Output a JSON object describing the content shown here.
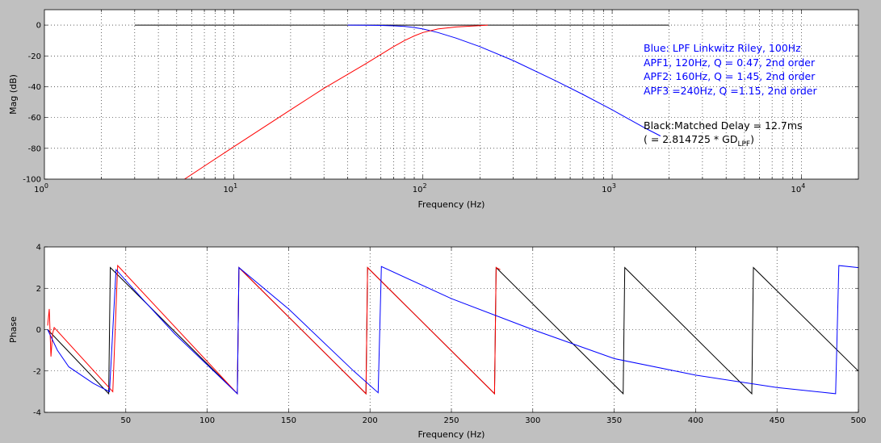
{
  "colors": {
    "background": "#c0c0c0",
    "axes": "#ffffff",
    "grid": "#000000",
    "blue": "#0000ff",
    "red": "#ff0000",
    "black": "#000000"
  },
  "chart_data": [
    {
      "type": "line",
      "xscale": "log",
      "xlim": [
        1,
        20000
      ],
      "ylim": [
        -100,
        10
      ],
      "xlabel": "Frequency (Hz)",
      "ylabel": "Mag (dB)",
      "grid": true,
      "xticks": [
        1,
        10,
        100,
        1000,
        10000
      ],
      "xtick_labels": [
        {
          "base": "10",
          "exp": "0"
        },
        {
          "base": "10",
          "exp": "1"
        },
        {
          "base": "10",
          "exp": "2"
        },
        {
          "base": "10",
          "exp": "3"
        },
        {
          "base": "10",
          "exp": "4"
        }
      ],
      "yticks": [
        0,
        -20,
        -40,
        -60,
        -80,
        -100
      ],
      "ytick_labels": [
        "0",
        "-20",
        "-40",
        "-60",
        "-80",
        "-100"
      ],
      "series": [
        {
          "color": "#000000",
          "x": [
            3,
            2000
          ],
          "y": [
            0,
            0
          ]
        },
        {
          "color": "#0000ff",
          "x": [
            40,
            50,
            60,
            70,
            80,
            90,
            100,
            120,
            150,
            200,
            300,
            500,
            700,
            1000,
            1500,
            1800
          ],
          "y": [
            0,
            -0.1,
            -0.2,
            -0.5,
            -0.9,
            -1.6,
            -2.5,
            -4.8,
            -8.5,
            -14,
            -23,
            -36,
            -45,
            -55,
            -67,
            -72
          ]
        },
        {
          "color": "#ff0000",
          "x": [
            5.5,
            10,
            20,
            30,
            40,
            50,
            60,
            70,
            80,
            90,
            100,
            120,
            150,
            200,
            220
          ],
          "y": [
            -100,
            -79,
            -55,
            -41,
            -32,
            -25,
            -19,
            -14,
            -10,
            -7,
            -4.8,
            -2.5,
            -1.2,
            -0.3,
            0
          ]
        }
      ],
      "annotations": [
        {
          "text": "Blue: LPF Linkwitz Riley, 100Hz",
          "color": "#0000ff"
        },
        {
          "text": "APF1, 120Hz, Q = 0.47, 2nd order",
          "color": "#0000ff"
        },
        {
          "text": "APF2: 160Hz, Q = 1.45, 2nd order",
          "color": "#0000ff"
        },
        {
          "text": "APF3 =240Hz, Q =1.15, 2nd order",
          "color": "#0000ff"
        },
        {
          "text": "Black:Matched Delay = 12.7ms",
          "color": "#000000"
        },
        {
          "text_prefix": "( = 2.814725 * GD",
          "subscript": "LPF",
          "text_suffix": ")",
          "color": "#000000"
        }
      ]
    },
    {
      "type": "line",
      "xlim": [
        0,
        500
      ],
      "ylim": [
        -4,
        4
      ],
      "xlabel": "Frequency (Hz)",
      "ylabel": "Phase",
      "grid": true,
      "xticks": [
        50,
        100,
        150,
        200,
        250,
        300,
        350,
        400,
        450,
        500
      ],
      "xtick_labels": [
        "50",
        "100",
        "150",
        "200",
        "250",
        "300",
        "350",
        "400",
        "450",
        "500"
      ],
      "yticks": [
        4,
        2,
        0,
        -2,
        -4
      ],
      "ytick_labels": [
        "4",
        "2",
        "0",
        "-2",
        "-4"
      ],
      "series": [
        {
          "color": "#000000",
          "x": [
            2,
            39.5,
            40.5,
            118.5,
            119.5,
            197.5,
            198.5,
            276.5,
            277.5,
            355.5,
            356.5,
            434.5,
            435.5,
            500
          ],
          "y": [
            0,
            -3.1,
            3.0,
            -3.1,
            3.0,
            -3.1,
            3.0,
            -3.1,
            3.0,
            -3.1,
            3.0,
            -3.1,
            3.0,
            -2.0
          ]
        },
        {
          "color": "#ff0000",
          "x": [
            2,
            3,
            4,
            5,
            6,
            42,
            45,
            118.5,
            119.5,
            197.5,
            198.5,
            276.5,
            277.5,
            280
          ],
          "y": [
            0.2,
            1.0,
            -1.3,
            -0.2,
            0.1,
            -3.0,
            3.1,
            -3.1,
            3.0,
            -3.1,
            3.0,
            -3.1,
            3.0,
            2.9
          ]
        },
        {
          "color": "#0000ff",
          "x": [
            2,
            8,
            15,
            30,
            40,
            44,
            60,
            80,
            118.5,
            119.5,
            150,
            190,
            205,
            207,
            250,
            300,
            350,
            400,
            450,
            486,
            488,
            500
          ],
          "y": [
            0,
            -1.0,
            -1.8,
            -2.6,
            -3.0,
            2.9,
            1.5,
            -0.2,
            -3.1,
            3.0,
            1.0,
            -2.0,
            -3.05,
            3.05,
            1.5,
            0.0,
            -1.4,
            -2.2,
            -2.8,
            -3.1,
            3.1,
            3.0
          ]
        }
      ]
    }
  ]
}
